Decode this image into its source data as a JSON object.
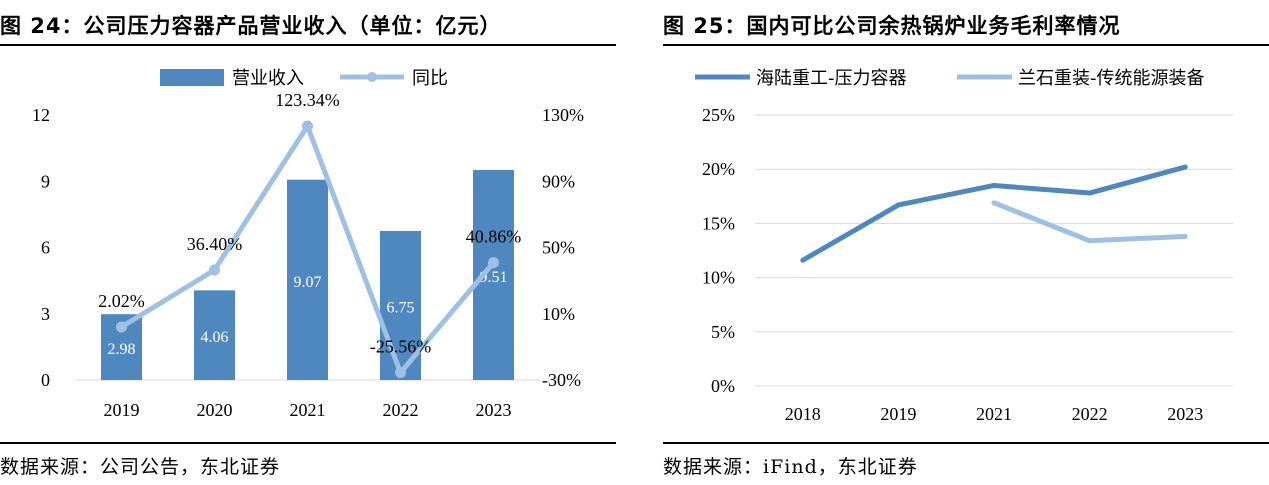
{
  "left": {
    "title": "图 24：公司压力容器产品营业收入（单位：亿元）",
    "source": "数据来源：公司公告，东北证券",
    "colors": {
      "bar": "#4f88bf",
      "line": "#9ec0e4",
      "bar_label": "#ffffff"
    }
  },
  "right": {
    "title": "图 25：国内可比公司余热锅炉业务毛利率情况",
    "source": "数据来源：iFind，东北证券",
    "colors": {
      "series1": "#4f88bf",
      "series2": "#9ec0e4"
    }
  },
  "chart_data": [
    {
      "type": "bar",
      "categories": [
        "2019",
        "2020",
        "2021",
        "2022",
        "2023"
      ],
      "series": [
        {
          "name": "营业收入",
          "kind": "bar",
          "axis": "left",
          "values": [
            2.98,
            4.06,
            9.07,
            6.75,
            9.51
          ],
          "labels": [
            "2.98",
            "4.06",
            "9.07",
            "6.75",
            "9.51"
          ]
        },
        {
          "name": "同比",
          "kind": "line",
          "axis": "right",
          "values": [
            2.02,
            36.4,
            123.34,
            -25.56,
            40.86
          ],
          "labels": [
            "2.02%",
            "36.40%",
            "123.34%",
            "-25.56%",
            "40.86%"
          ]
        }
      ],
      "y_left": {
        "lim": [
          0,
          12
        ],
        "ticks": [
          0,
          3,
          6,
          9,
          12
        ],
        "tick_labels": [
          "0",
          "3",
          "6",
          "9",
          "12"
        ]
      },
      "y_right": {
        "lim": [
          -30,
          130
        ],
        "ticks": [
          -30,
          10,
          50,
          90,
          130
        ],
        "tick_labels": [
          "-30%",
          "10%",
          "50%",
          "90%",
          "130%"
        ]
      },
      "grid": false,
      "legend": "top-center"
    },
    {
      "type": "line",
      "categories": [
        "2018",
        "2019",
        "2021",
        "2022",
        "2023"
      ],
      "series": [
        {
          "name": "海陆重工-压力容器",
          "values": [
            11.6,
            16.7,
            18.5,
            17.8,
            20.2
          ]
        },
        {
          "name": "兰石重装-传统能源装备",
          "values": [
            null,
            null,
            16.9,
            13.4,
            13.8
          ]
        }
      ],
      "ylim": [
        0,
        25
      ],
      "ticks": [
        0,
        5,
        10,
        15,
        20,
        25
      ],
      "tick_labels": [
        "0%",
        "5%",
        "10%",
        "15%",
        "20%",
        "25%"
      ],
      "grid": true,
      "legend": "top"
    }
  ]
}
